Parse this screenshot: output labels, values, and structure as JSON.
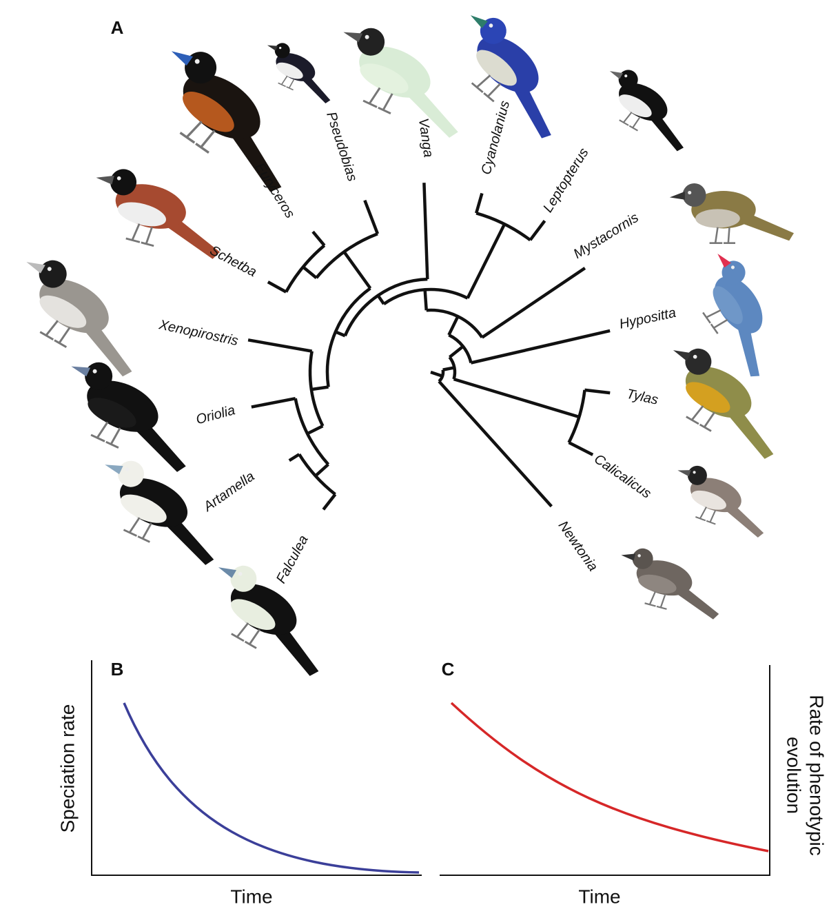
{
  "panels": {
    "a": {
      "label": "A",
      "taxa": [
        "Falculea",
        "Artamella",
        "Oriolia",
        "Xenopirostris",
        "Schetba",
        "Euryceros",
        "Pseudobias",
        "Vanga",
        "Cyanolanius",
        "Leptopterus",
        "Mystacornis",
        "Hypositta",
        "Tylas",
        "Calicalicus",
        "Newtonia"
      ]
    },
    "b": {
      "label": "B",
      "x_label": "Time",
      "y_label": "Speciation rate"
    },
    "c": {
      "label": "C",
      "x_label": "Time",
      "y_label": [
        "Rate of phenotypic",
        "evolution"
      ]
    }
  }
}
